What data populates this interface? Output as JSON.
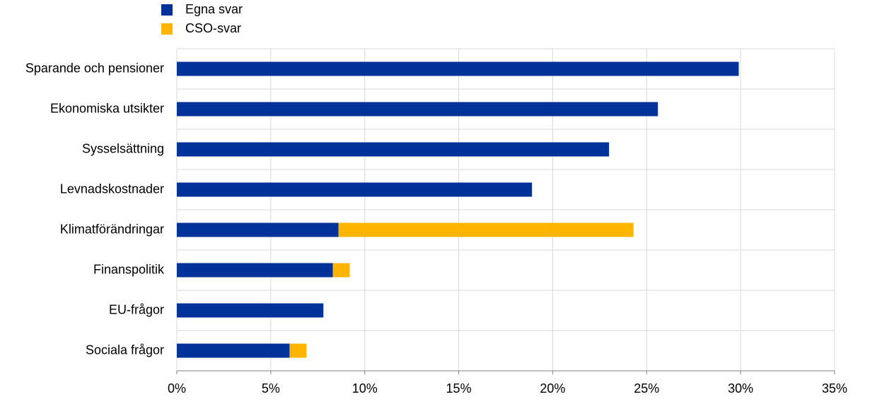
{
  "chart_data": {
    "type": "stacked-bar-horizontal",
    "categories": [
      "Sparande och pensioner",
      "Ekonomiska utsikter",
      "Sysselsättning",
      "Levnadskostnader",
      "Klimatförändringar",
      "Finanspolitik",
      "EU-frågor",
      "Sociala frågor"
    ],
    "series": [
      {
        "name": "Egna svar",
        "color": "#003299",
        "values": [
          29.9,
          25.6,
          23.0,
          18.9,
          8.6,
          8.3,
          7.8,
          6.0
        ]
      },
      {
        "name": "CSO-svar",
        "color": "#ffb400",
        "values": [
          null,
          null,
          null,
          null,
          15.7,
          0.9,
          null,
          0.9
        ]
      }
    ],
    "xlim": [
      0,
      35
    ],
    "xticks": [
      {
        "value": 0,
        "label": "0%"
      },
      {
        "value": 5,
        "label": "5%"
      },
      {
        "value": 10,
        "label": "10%"
      },
      {
        "value": 15,
        "label": "15%"
      },
      {
        "value": 20,
        "label": "20%"
      },
      {
        "value": 25,
        "label": "25%"
      },
      {
        "value": 30,
        "label": "30%"
      },
      {
        "value": 35,
        "label": "35%"
      }
    ],
    "grid": true
  }
}
